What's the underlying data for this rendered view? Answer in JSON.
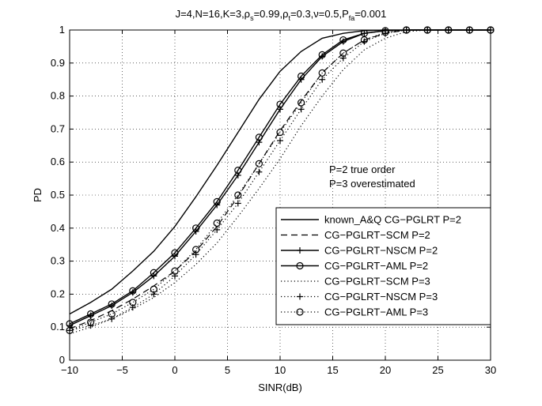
{
  "chart_data": {
    "type": "line",
    "title_parts": {
      "prefix": "J=4,N=16,K=3,ρ",
      "sub1": "s",
      "mid1": "=0.99,ρ",
      "sub2": "t",
      "mid2": "=0.3,ν=0.5,P",
      "sub3": "fa",
      "suffix": "=0.001"
    },
    "xlabel": "SINR(dB)",
    "ylabel": "PD",
    "xlim": [
      -10,
      30
    ],
    "ylim": [
      0,
      1
    ],
    "xticks": [
      -10,
      -5,
      0,
      5,
      10,
      15,
      20,
      25,
      30
    ],
    "yticks": [
      0,
      0.1,
      0.2,
      0.3,
      0.4,
      0.5,
      0.6,
      0.7,
      0.8,
      0.9,
      1
    ],
    "grid": true,
    "legend_position": "lower-right",
    "annotations": [
      "P=2 true order",
      "P=3 overestimated"
    ],
    "x": [
      -10,
      -8,
      -6,
      -4,
      -2,
      0,
      2,
      4,
      6,
      8,
      10,
      12,
      14,
      16,
      18,
      20,
      22,
      24,
      26,
      28,
      30
    ],
    "series": [
      {
        "name": "known_A&Q CG−PGLRT P=2",
        "style": "solid",
        "marker": "none",
        "values": [
          0.14,
          0.175,
          0.215,
          0.27,
          0.33,
          0.405,
          0.495,
          0.59,
          0.69,
          0.79,
          0.875,
          0.935,
          0.975,
          0.99,
          0.998,
          1,
          1,
          1,
          1,
          1,
          1
        ]
      },
      {
        "name": "CG−PGLRT−SCM P=2",
        "style": "dashed",
        "marker": "none",
        "values": [
          0.095,
          0.12,
          0.15,
          0.185,
          0.225,
          0.27,
          0.33,
          0.405,
          0.495,
          0.595,
          0.695,
          0.785,
          0.87,
          0.93,
          0.97,
          0.99,
          1,
          1,
          1,
          1,
          1
        ]
      },
      {
        "name": "CG−PGLRT−NSCM P=2",
        "style": "solid",
        "marker": "plus",
        "values": [
          0.105,
          0.135,
          0.165,
          0.205,
          0.255,
          0.315,
          0.39,
          0.47,
          0.56,
          0.66,
          0.76,
          0.85,
          0.92,
          0.965,
          0.99,
          0.998,
          1,
          1,
          1,
          1,
          1
        ]
      },
      {
        "name": "CG−PGLRT−AML P=2",
        "style": "solid",
        "marker": "circle",
        "values": [
          0.11,
          0.14,
          0.17,
          0.21,
          0.265,
          0.325,
          0.4,
          0.48,
          0.575,
          0.675,
          0.775,
          0.86,
          0.925,
          0.97,
          0.99,
          0.998,
          1,
          1,
          1,
          1,
          1
        ]
      },
      {
        "name": "CG−PGLRT−SCM P=3",
        "style": "dotted",
        "marker": "none",
        "values": [
          0.08,
          0.1,
          0.125,
          0.155,
          0.19,
          0.235,
          0.29,
          0.355,
          0.435,
          0.52,
          0.61,
          0.71,
          0.8,
          0.88,
          0.94,
          0.975,
          0.995,
          1,
          1,
          1,
          1
        ]
      },
      {
        "name": "CG−PGLRT−NSCM P=3",
        "style": "dotted",
        "marker": "plus",
        "values": [
          0.09,
          0.105,
          0.125,
          0.16,
          0.2,
          0.255,
          0.32,
          0.395,
          0.475,
          0.57,
          0.665,
          0.76,
          0.85,
          0.915,
          0.965,
          0.99,
          1,
          1,
          1,
          1,
          1
        ]
      },
      {
        "name": "CG−PGLRT−AML P=3",
        "style": "dotted",
        "marker": "circle",
        "values": [
          0.09,
          0.115,
          0.14,
          0.175,
          0.215,
          0.27,
          0.335,
          0.415,
          0.5,
          0.595,
          0.69,
          0.78,
          0.87,
          0.93,
          0.97,
          0.993,
          1,
          1,
          1,
          1,
          1
        ]
      }
    ]
  }
}
